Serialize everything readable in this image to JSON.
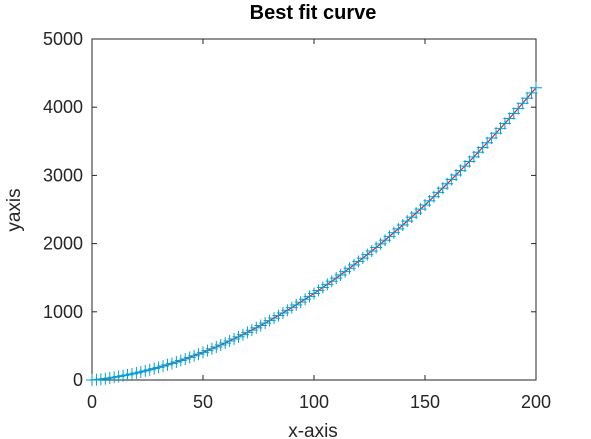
{
  "chart_data": {
    "type": "line",
    "title": "Best fit curve",
    "xlabel": "x-axis",
    "ylabel": "yaxis",
    "xlim": [
      0,
      200
    ],
    "ylim": [
      0,
      5000
    ],
    "xticks": [
      0,
      50,
      100,
      150,
      200
    ],
    "yticks": [
      0,
      1000,
      2000,
      3000,
      4000,
      5000
    ],
    "grid": false,
    "legend": "none",
    "series": [
      {
        "marker": "+",
        "color": "#00a0d8",
        "x": [
          0,
          2,
          4,
          6,
          8,
          10,
          12,
          14,
          16,
          18,
          20,
          22,
          24,
          26,
          28,
          30,
          32,
          34,
          36,
          38,
          40,
          42,
          44,
          46,
          48,
          50,
          52,
          54,
          56,
          58,
          60,
          62,
          64,
          66,
          68,
          70,
          72,
          74,
          76,
          78,
          80,
          82,
          84,
          86,
          88,
          90,
          92,
          94,
          96,
          98,
          100,
          102,
          104,
          106,
          108,
          110,
          112,
          114,
          116,
          118,
          120,
          122,
          124,
          126,
          128,
          130,
          132,
          134,
          136,
          138,
          140,
          142,
          144,
          146,
          148,
          150,
          152,
          154,
          156,
          158,
          160,
          162,
          164,
          166,
          168,
          170,
          172,
          174,
          176,
          178,
          180,
          182,
          184,
          186,
          188,
          190,
          192,
          194,
          196,
          198,
          200
        ],
        "y": [
          0,
          4,
          11,
          19,
          29,
          40,
          51,
          63,
          75,
          89,
          103,
          118,
          134,
          150,
          167,
          185,
          204,
          223,
          243,
          264,
          286,
          308,
          331,
          355,
          380,
          405,
          431,
          458,
          485,
          513,
          542,
          572,
          602,
          633,
          665,
          698,
          731,
          765,
          799,
          835,
          871,
          907,
          945,
          983,
          1022,
          1061,
          1101,
          1142,
          1184,
          1226,
          1269,
          1313,
          1357,
          1402,
          1448,
          1494,
          1541,
          1589,
          1638,
          1687,
          1737,
          1787,
          1839,
          1891,
          1943,
          1996,
          2050,
          2105,
          2160,
          2216,
          2273,
          2330,
          2388,
          2447,
          2506,
          2566,
          2627,
          2688,
          2751,
          2813,
          2877,
          2941,
          3006,
          3071,
          3137,
          3204,
          3271,
          3340,
          3408,
          3478,
          3548,
          3619,
          3690,
          3762,
          3835,
          3908,
          3982,
          4057,
          4132,
          4209,
          4285
        ]
      },
      {
        "line": "solid",
        "color": "#d62728",
        "x": [
          0,
          10,
          20,
          30,
          40,
          50,
          60,
          70,
          80,
          90,
          100,
          110,
          120,
          130,
          140,
          150,
          160,
          170,
          180,
          190,
          200
        ],
        "y": [
          0,
          40,
          103,
          185,
          286,
          405,
          542,
          698,
          871,
          1061,
          1269,
          1494,
          1737,
          1996,
          2273,
          2566,
          2877,
          3204,
          3548,
          3908,
          4285
        ]
      }
    ]
  }
}
